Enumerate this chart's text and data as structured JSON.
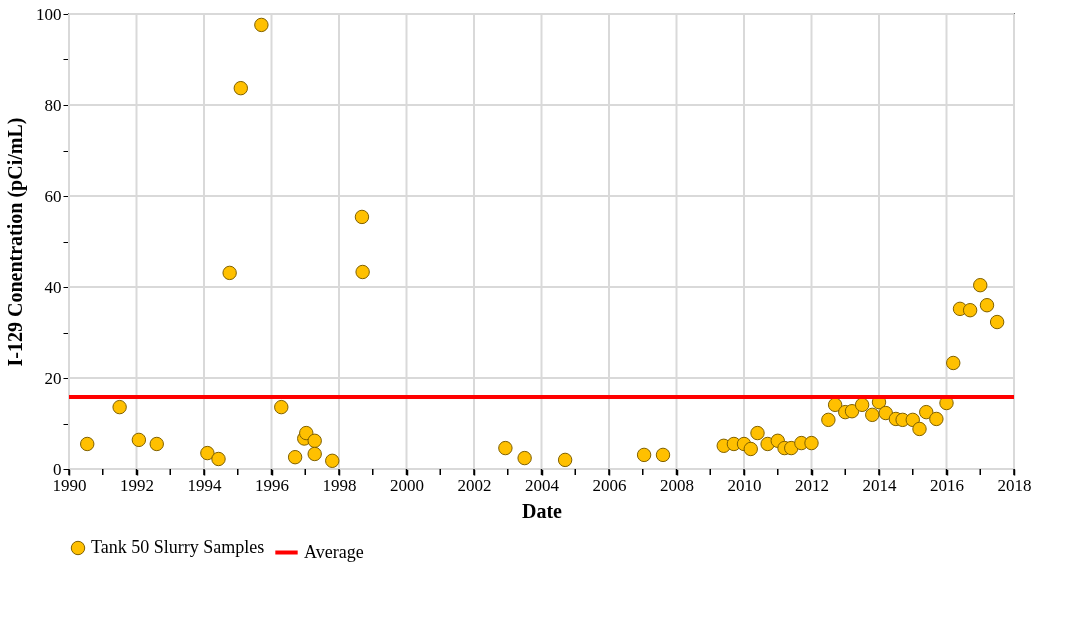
{
  "chart_data": {
    "type": "scatter",
    "xlabel": "Date",
    "ylabel": "I-129 Conentration (pCi/mL)",
    "xlim": [
      1990,
      2018
    ],
    "xticks": [
      1990,
      {
        "value": 1991,
        "label": null
      },
      1992,
      {
        "value": 1993,
        "label": null
      },
      1994,
      {
        "value": 1995,
        "label": null
      },
      1996,
      {
        "value": 1997,
        "label": null
      },
      1998,
      {
        "value": 1999,
        "label": null
      },
      2000,
      {
        "value": 2001,
        "label": null
      },
      2002,
      {
        "value": 2003,
        "label": null
      },
      2004,
      {
        "value": 2005,
        "label": null
      },
      2006,
      {
        "value": 2007,
        "label": null
      },
      2008,
      {
        "value": 2009,
        "label": null
      },
      2010,
      {
        "value": 2011,
        "label": null
      },
      2012,
      {
        "value": 2013,
        "label": null
      },
      2014,
      {
        "value": 2015,
        "label": null
      },
      2016,
      {
        "value": 2017,
        "label": null
      },
      2018
    ],
    "ylim": [
      0,
      100
    ],
    "yticks": [
      0,
      {
        "value": 10,
        "label": null
      },
      20,
      {
        "value": 30,
        "label": null
      },
      40,
      {
        "value": 50,
        "label": null
      },
      60,
      {
        "value": 70,
        "label": null
      },
      80,
      {
        "value": 90,
        "label": null
      },
      100
    ],
    "grid": true,
    "legend": "bottom",
    "marker": "circle",
    "x": [
      1990.54,
      1991.5,
      1992.07,
      1992.6,
      1994.1,
      1994.43,
      1994.76,
      1995.09,
      1995.7,
      1996.29,
      1996.7,
      1996.97,
      1997.03,
      1997.28,
      1997.28,
      1997.8,
      1998.68,
      1998.7,
      2002.93,
      2003.5,
      2004.7,
      2007.04,
      2007.6,
      2009.4,
      2009.7,
      2010.0,
      2010.2,
      2010.4,
      2010.7,
      2011.0,
      2011.2,
      2011.4,
      2011.7,
      2012.0,
      2012.5,
      2012.7,
      2013.0,
      2013.2,
      2013.5,
      2013.8,
      2014.0,
      2014.2,
      2014.5,
      2014.7,
      2015.0,
      2015.2,
      2015.4,
      2015.7,
      2016.0,
      2016.2,
      2016.4,
      2016.7,
      2017.0,
      2017.2,
      2017.5
    ],
    "series": [
      {
        "name": "Tank 50 Slurry Samples",
        "color": "#ffc000",
        "values": [
          5.5,
          13.6,
          6.4,
          5.5,
          3.5,
          2.2,
          43.1,
          83.7,
          97.6,
          13.6,
          2.6,
          6.7,
          7.9,
          6.2,
          3.3,
          1.8,
          55.4,
          43.3,
          4.6,
          2.4,
          2.0,
          3.1,
          3.1,
          5.1,
          5.5,
          5.5,
          4.4,
          7.9,
          5.5,
          6.2,
          4.6,
          4.6,
          5.7,
          5.7,
          10.8,
          14.1,
          12.5,
          12.7,
          14.1,
          11.9,
          14.7,
          12.3,
          11.0,
          10.8,
          10.8,
          8.8,
          12.5,
          11.0,
          14.5,
          23.3,
          35.2,
          34.9,
          40.4,
          36.0,
          32.3
        ]
      }
    ],
    "ref_lines": [
      {
        "axis": "y",
        "value": 15.8,
        "label": "Average",
        "color": "#ff0000"
      }
    ]
  }
}
